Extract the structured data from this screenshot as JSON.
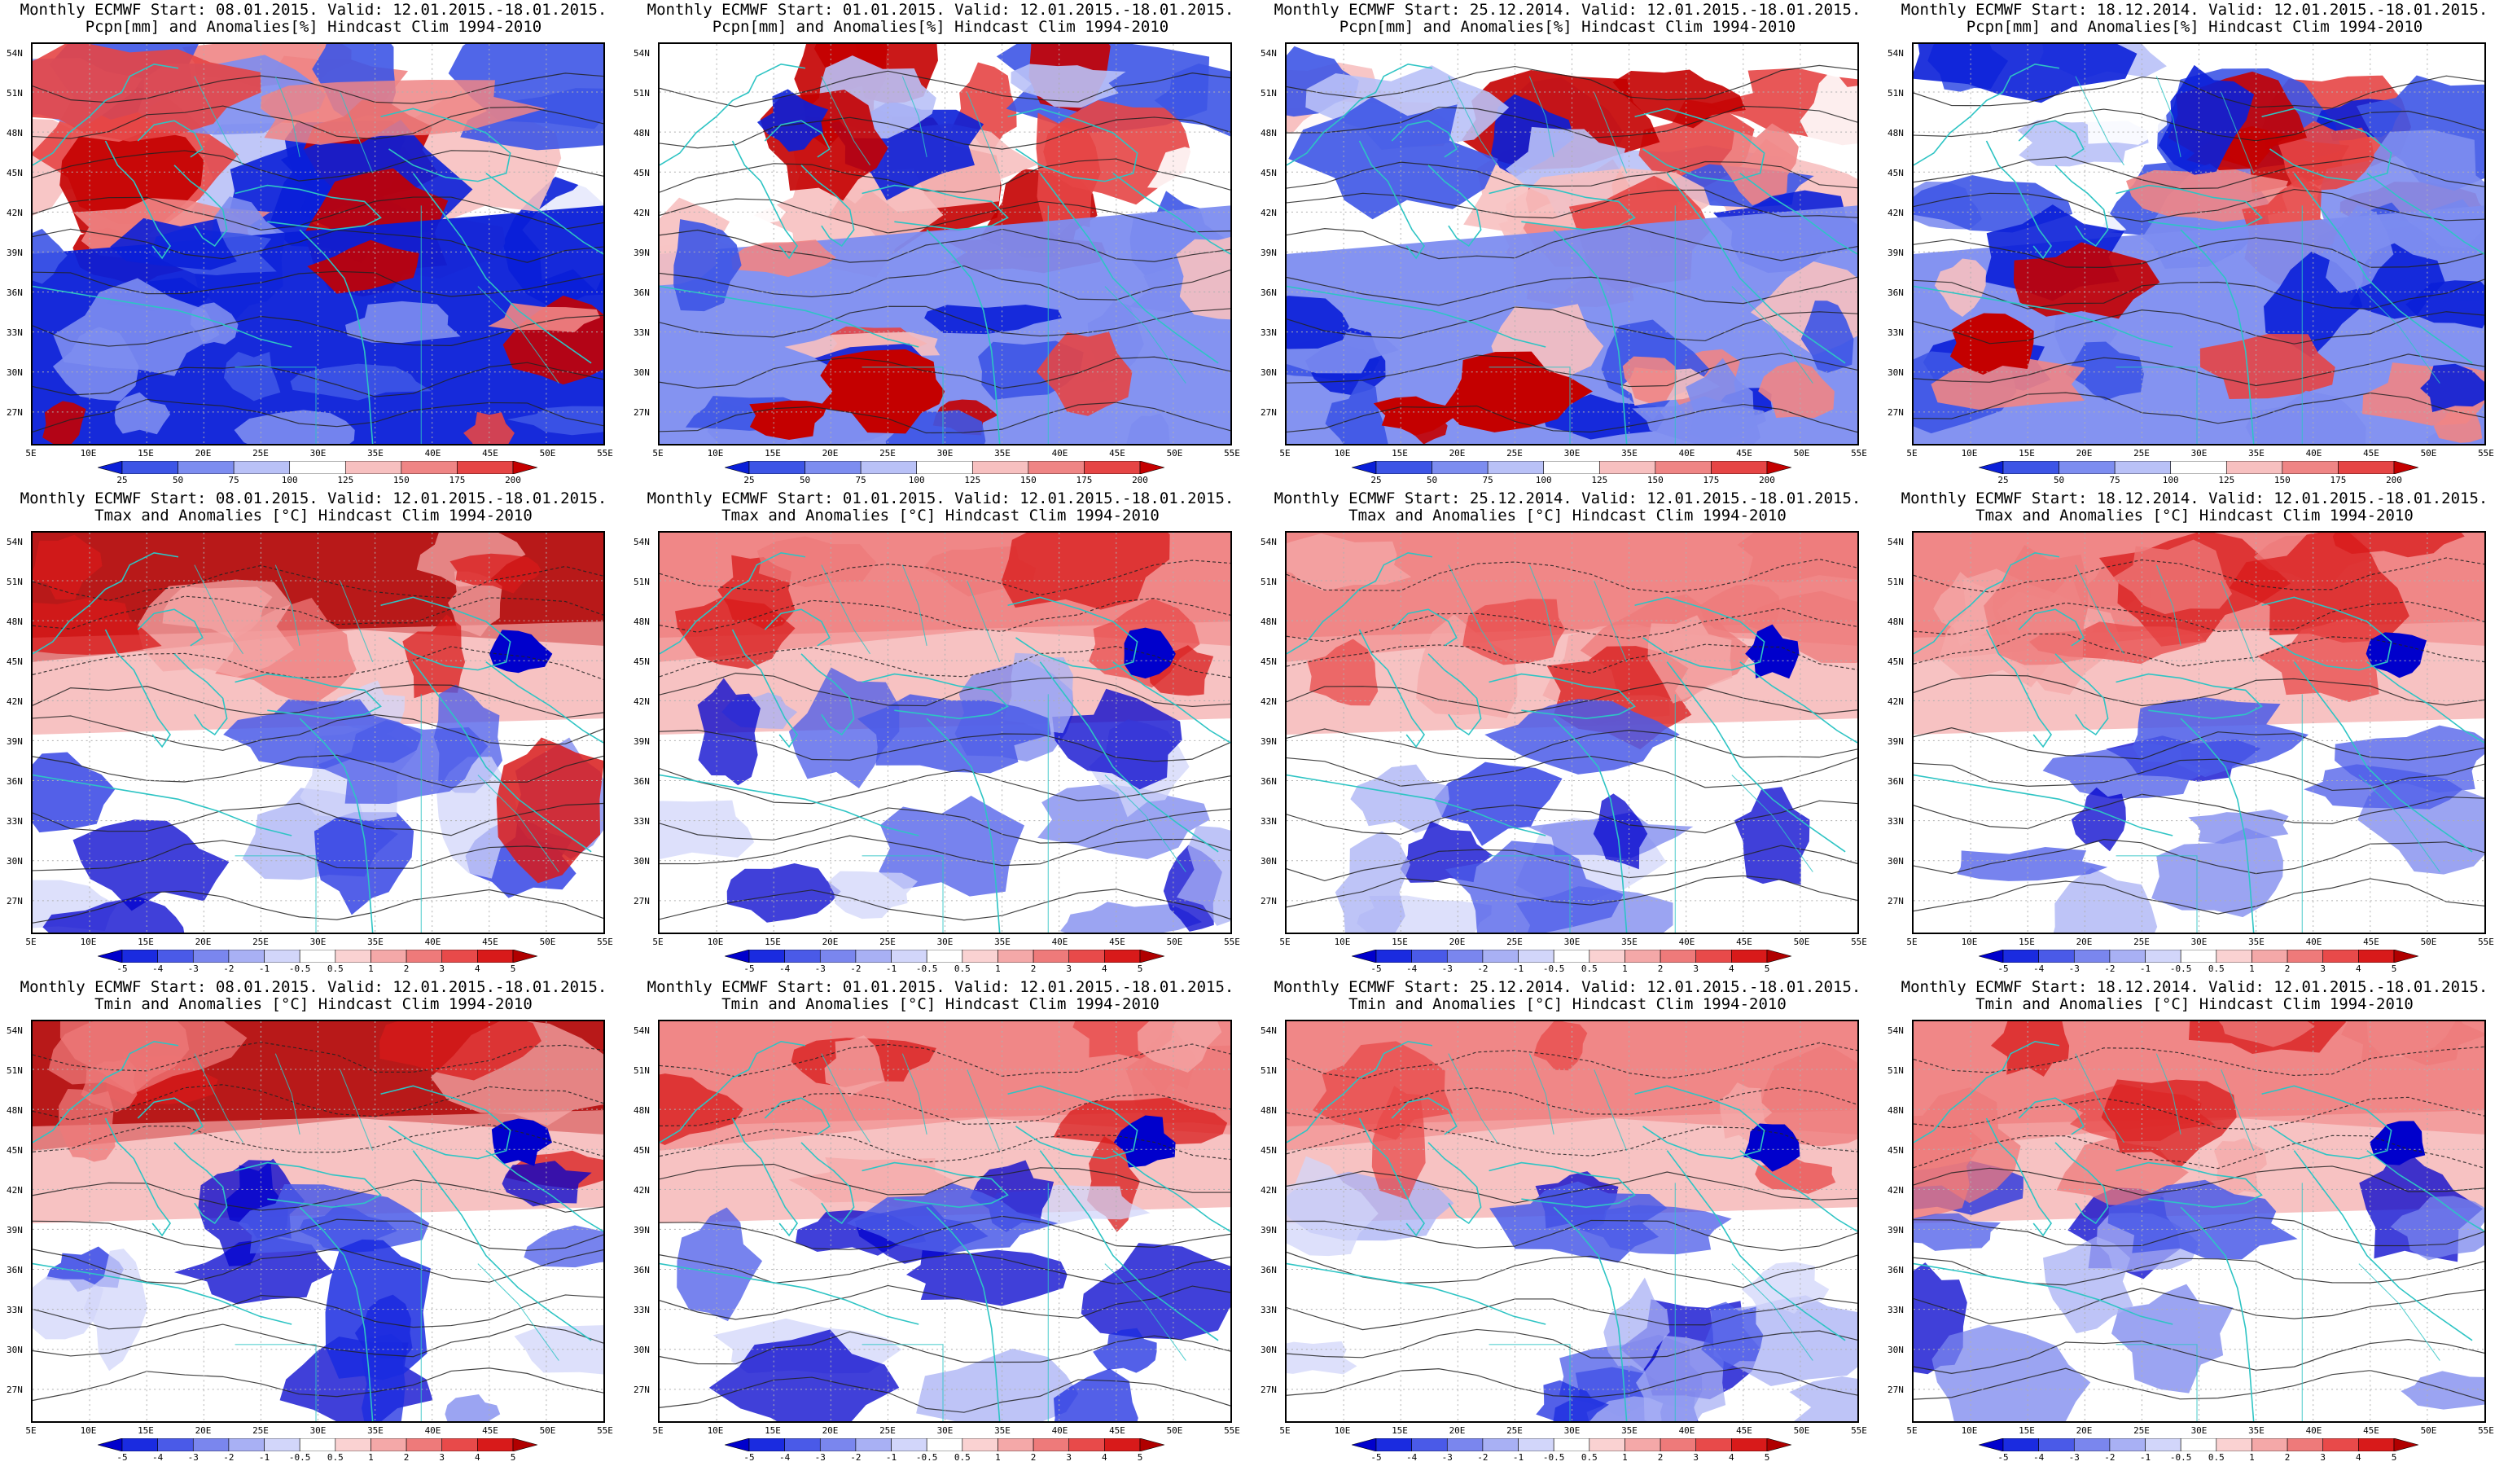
{
  "panels": [
    {
      "title1": "Monthly ECMWF Start: 08.01.2015. Valid: 12.01.2015.-18.01.2015.",
      "title2": "Pcpn[mm] and Anomalies[%] Hindcast Clim 1994-2010",
      "var": "pcpn",
      "row": 0,
      "col": 0
    },
    {
      "title1": "Monthly ECMWF Start: 01.01.2015. Valid: 12.01.2015.-18.01.2015.",
      "title2": "Pcpn[mm] and Anomalies[%] Hindcast Clim 1994-2010",
      "var": "pcpn",
      "row": 0,
      "col": 1
    },
    {
      "title1": "Monthly ECMWF Start: 25.12.2014. Valid: 12.01.2015.-18.01.2015.",
      "title2": "Pcpn[mm] and Anomalies[%] Hindcast Clim 1994-2010",
      "var": "pcpn",
      "row": 0,
      "col": 2
    },
    {
      "title1": "Monthly ECMWF Start: 18.12.2014. Valid: 12.01.2015.-18.01.2015.",
      "title2": "Pcpn[mm] and Anomalies[%] Hindcast Clim 1994-2010",
      "var": "pcpn",
      "row": 0,
      "col": 3
    },
    {
      "title1": "Monthly ECMWF Start: 08.01.2015. Valid: 12.01.2015.-18.01.2015.",
      "title2": "Tmax and Anomalies [°C] Hindcast Clim 1994-2010",
      "var": "temp",
      "row": 1,
      "col": 0
    },
    {
      "title1": "Monthly ECMWF Start: 01.01.2015. Valid: 12.01.2015.-18.01.2015.",
      "title2": "Tmax and Anomalies [°C] Hindcast Clim 1994-2010",
      "var": "temp",
      "row": 1,
      "col": 1
    },
    {
      "title1": "Monthly ECMWF Start: 25.12.2014. Valid: 12.01.2015.-18.01.2015.",
      "title2": "Tmax and Anomalies [°C] Hindcast Clim 1994-2010",
      "var": "temp",
      "row": 1,
      "col": 2
    },
    {
      "title1": "Monthly ECMWF Start: 18.12.2014. Valid: 12.01.2015.-18.01.2015.",
      "title2": "Tmax and Anomalies [°C] Hindcast Clim 1994-2010",
      "var": "temp",
      "row": 1,
      "col": 3
    },
    {
      "title1": "Monthly ECMWF Start: 08.01.2015. Valid: 12.01.2015.-18.01.2015.",
      "title2": "Tmin and Anomalies [°C] Hindcast Clim 1994-2010",
      "var": "temp",
      "row": 2,
      "col": 0
    },
    {
      "title1": "Monthly ECMWF Start: 01.01.2015. Valid: 12.01.2015.-18.01.2015.",
      "title2": "Tmin and Anomalies [°C] Hindcast Clim 1994-2010",
      "var": "temp",
      "row": 2,
      "col": 1
    },
    {
      "title1": "Monthly ECMWF Start: 25.12.2014. Valid: 12.01.2015.-18.01.2015.",
      "title2": "Tmin and Anomalies [°C] Hindcast Clim 1994-2010",
      "var": "temp",
      "row": 2,
      "col": 2
    },
    {
      "title1": "Monthly ECMWF Start: 18.12.2014. Valid: 12.01.2015.-18.01.2015.",
      "title2": "Tmin and Anomalies [°C] Hindcast Clim 1994-2010",
      "var": "temp",
      "row": 2,
      "col": 3
    }
  ],
  "lat_labels": [
    "54N",
    "51N",
    "48N",
    "45N",
    "42N",
    "39N",
    "36N",
    "33N",
    "30N",
    "27N"
  ],
  "lon_labels": [
    "5E",
    "10E",
    "15E",
    "20E",
    "25E",
    "30E",
    "35E",
    "40E",
    "45E",
    "50E",
    "55E"
  ],
  "colorbars": {
    "pcpn": {
      "labels": [
        "25",
        "50",
        "75",
        "100",
        "125",
        "150",
        "175",
        "200"
      ],
      "colors": [
        "#0a1fd8",
        "#3d55e6",
        "#7d8df0",
        "#b9c1f7",
        "#ffffff",
        "#f7c0c0",
        "#ef8585",
        "#e64545",
        "#c40000"
      ]
    },
    "temp": {
      "labels": [
        "-5",
        "-4",
        "-3",
        "-2",
        "-1",
        "-0.5",
        "0.5",
        "1",
        "2",
        "3",
        "4",
        "5"
      ],
      "colors": [
        "#0000cc",
        "#1a2be0",
        "#4a5ae8",
        "#7a86ee",
        "#a8b0f4",
        "#d2d6fa",
        "#ffffff",
        "#fad2d2",
        "#f4a8a8",
        "#ee7a7a",
        "#e84a4a",
        "#d81a1a",
        "#b00000"
      ]
    }
  },
  "colors": {
    "coast": "#2ec4c4",
    "contour": "#222222",
    "grid": "#b0b0b0"
  }
}
